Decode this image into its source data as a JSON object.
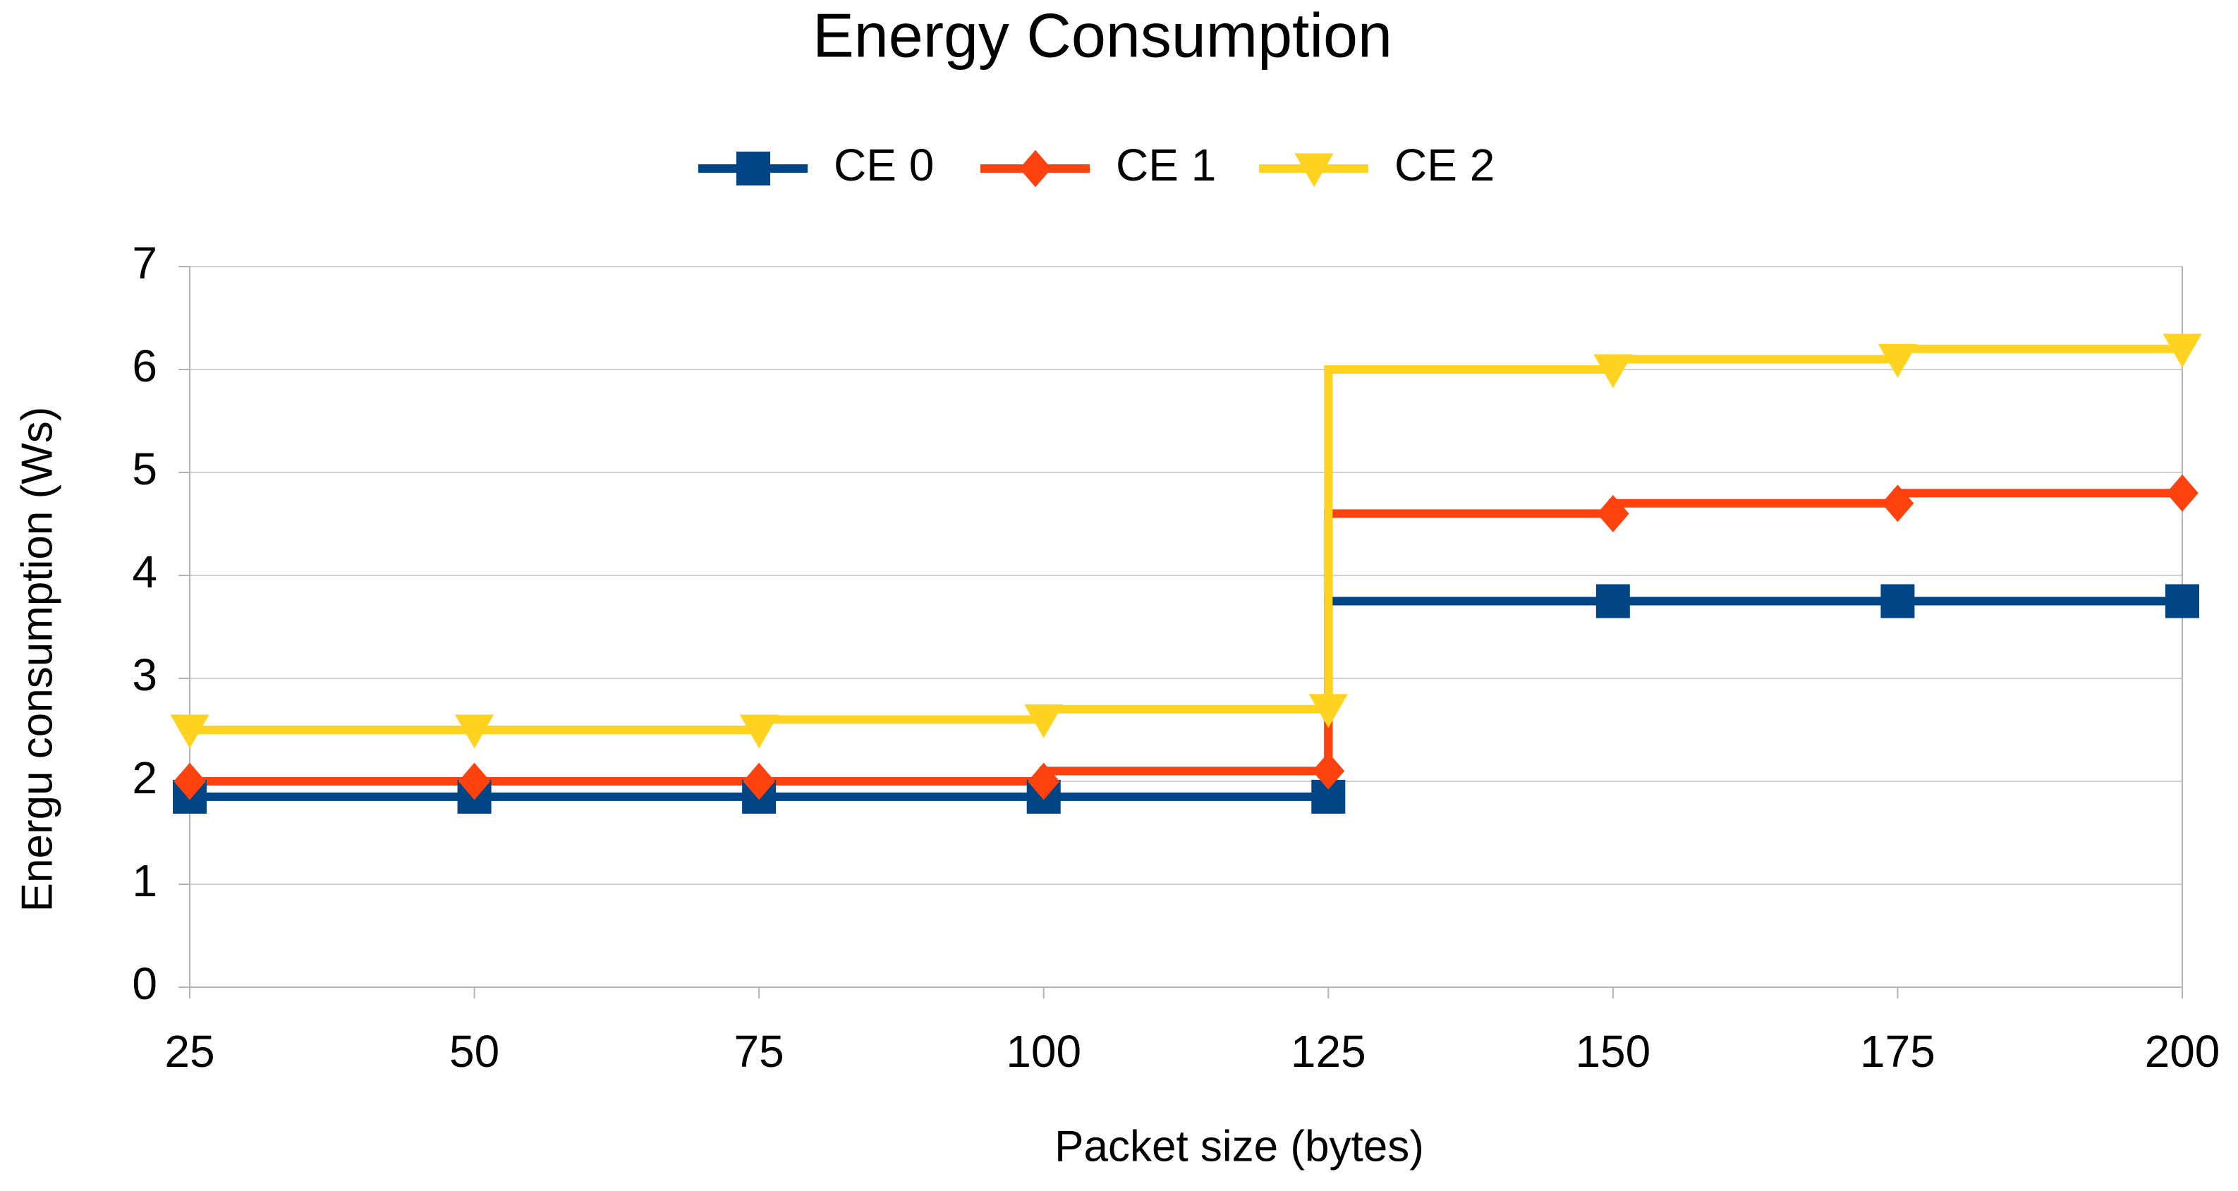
{
  "chart_data": {
    "type": "line",
    "title": "Energy Consumption",
    "x_label": "Packet size (bytes)",
    "y_label": "Energu consumption (Ws)",
    "x": [
      25,
      50,
      75,
      100,
      125,
      150,
      175,
      200
    ],
    "xlim": [
      25,
      200
    ],
    "xticks": [
      25,
      50,
      75,
      100,
      125,
      150,
      175,
      200
    ],
    "ylim": [
      0,
      7
    ],
    "yticks": [
      0,
      1,
      2,
      3,
      4,
      5,
      6,
      7
    ],
    "grid": true,
    "drawstyle": "steps-pre",
    "legend": "top",
    "series": [
      {
        "name": "CE 0",
        "color": "#004586",
        "marker": "square",
        "values": [
          1.85,
          1.85,
          1.85,
          1.85,
          1.85,
          3.75,
          3.75,
          3.75
        ]
      },
      {
        "name": "CE 1",
        "color": "#ff420e",
        "marker": "diamond",
        "values": [
          2,
          2,
          2,
          2,
          2.1,
          4.6,
          4.7,
          4.8
        ]
      },
      {
        "name": "CE 2",
        "color": "#ffd320",
        "marker": "triangle-down",
        "values": [
          2.5,
          2.5,
          2.5,
          2.6,
          2.7,
          6.0,
          6.1,
          6.2
        ]
      }
    ]
  }
}
